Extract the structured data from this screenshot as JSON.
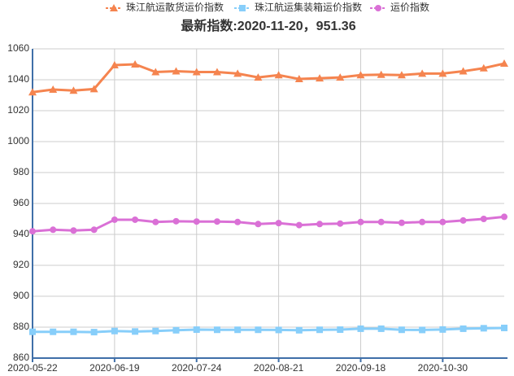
{
  "chart_data": {
    "type": "line",
    "title": "最新指数:2020-11-20，951.36",
    "categories": [
      "2020-05-22",
      null,
      null,
      null,
      "2020-06-19",
      null,
      null,
      null,
      "2020-07-24",
      null,
      null,
      null,
      "2020-08-21",
      null,
      null,
      null,
      "2020-09-18",
      null,
      null,
      null,
      "2020-10-30",
      null,
      null,
      null
    ],
    "series": [
      {
        "name": "珠江航运散货运价指数",
        "color": "#f5844f",
        "marker": "triangle",
        "values": [
          1032,
          1033.7,
          1033,
          1034,
          1049.5,
          1050,
          1045,
          1045.5,
          1045,
          1045,
          1044,
          1041.5,
          1043,
          1040.5,
          1041,
          1041.5,
          1043,
          1043.3,
          1043,
          1044,
          1044,
          1045.5,
          1047.5,
          1050.5
        ]
      },
      {
        "name": "珠江航运集装箱运价指数",
        "color": "#87cefa",
        "marker": "square",
        "values": [
          877,
          877,
          877,
          876.8,
          877.5,
          877.2,
          877.5,
          878,
          878.4,
          878.3,
          878.3,
          878.3,
          878.2,
          878,
          878.3,
          878.4,
          879,
          879,
          878.3,
          878.2,
          878.5,
          879,
          879.3,
          879.5
        ]
      },
      {
        "name": "运价指数",
        "color": "#da70d6",
        "marker": "circle",
        "values": [
          942,
          943,
          942.5,
          943,
          949.5,
          949.5,
          948,
          948.5,
          948.3,
          948.3,
          948,
          946.7,
          947.3,
          946,
          946.7,
          947,
          948,
          948,
          947.5,
          948,
          948,
          949,
          950,
          951.36
        ]
      }
    ],
    "ylim": [
      860,
      1060
    ],
    "yticks": [
      860,
      880,
      900,
      920,
      940,
      960,
      980,
      1000,
      1020,
      1040,
      1060
    ],
    "grid": true
  }
}
